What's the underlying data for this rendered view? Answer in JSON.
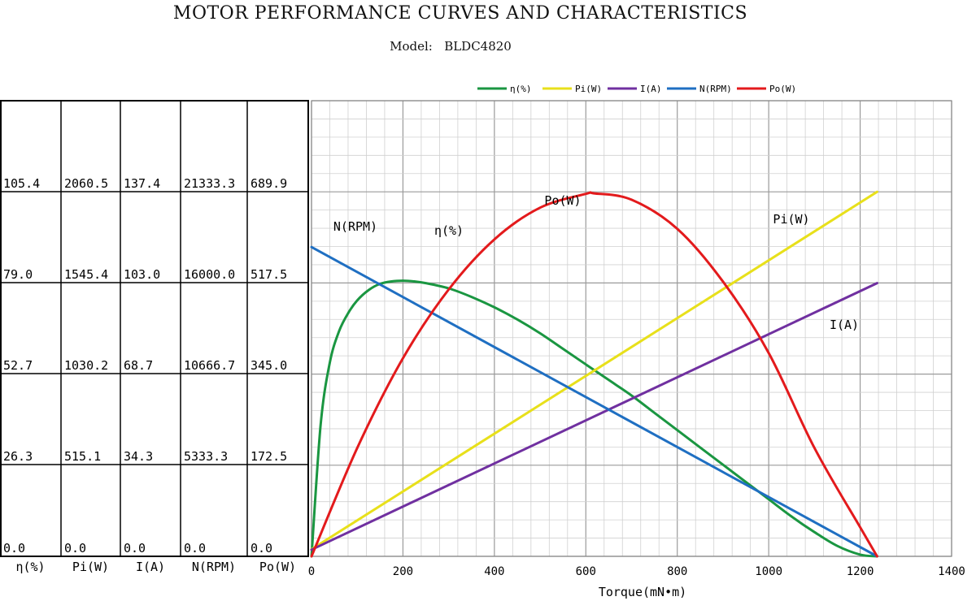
{
  "header": {
    "title": "MOTOR PERFORMANCE CURVES AND CHARACTERISTICS",
    "model_label": "Model:",
    "model_value": "BLDC4820"
  },
  "table": {
    "columns": [
      "η(%)",
      "Pi(W)",
      "I(A)",
      "N(RPM)",
      "Po(W)"
    ],
    "rows": [
      [
        "105.4",
        "2060.5",
        "137.4",
        "21333.3",
        "689.9"
      ],
      [
        "79.0",
        "1545.4",
        "103.0",
        "16000.0",
        "517.5"
      ],
      [
        "52.7",
        "1030.2",
        "68.7",
        "10666.7",
        "345.0"
      ],
      [
        "26.3",
        "515.1",
        "34.3",
        "5333.3",
        "172.5"
      ],
      [
        "0.0",
        "0.0",
        "0.0",
        "0.0",
        "0.0"
      ]
    ]
  },
  "chart_data": {
    "type": "line",
    "title": "MOTOR PERFORMANCE CURVES AND CHARACTERISTICS",
    "subtitle": "Model:   BLDC4820",
    "xlabel": "Torque(mN•m)",
    "xlim": [
      0,
      1400
    ],
    "x_ticks": [
      0,
      200,
      400,
      600,
      800,
      1000,
      1200,
      1400
    ],
    "grid": true,
    "legend_position": "top",
    "series": [
      {
        "name": "η(%)",
        "color": "#1a9641",
        "axis_max": 131.75,
        "x": [
          0,
          20,
          40,
          60,
          80,
          100,
          125,
          150,
          175,
          200,
          225,
          250,
          300,
          350,
          400,
          450,
          500,
          550,
          600,
          650,
          700,
          750,
          800,
          850,
          900,
          950,
          1000,
          1050,
          1100,
          1150,
          1200,
          1237
        ],
        "values": [
          0,
          38,
          56,
          65,
          70.3,
          74,
          77,
          78.8,
          79.5,
          79.7,
          79.5,
          79,
          77.5,
          75,
          72,
          68.5,
          64.5,
          60,
          55.5,
          51,
          46.5,
          41.5,
          36.5,
          31.5,
          26.5,
          21.5,
          16.5,
          11.5,
          7,
          3,
          0.5,
          0
        ]
      },
      {
        "name": "Pi(W)",
        "color": "#e8e01b",
        "axis_max": 2575.6,
        "x": [
          0,
          1237
        ],
        "values": [
          40,
          2060.5
        ]
      },
      {
        "name": "I(A)",
        "color": "#7030a0",
        "axis_max": 171.75,
        "x": [
          0,
          1237
        ],
        "values": [
          2.5,
          103
        ]
      },
      {
        "name": "N(RPM)",
        "color": "#1f6fc2",
        "axis_max": 26666.6,
        "x": [
          0,
          1237
        ],
        "values": [
          18100,
          0
        ]
      },
      {
        "name": "Po(W)",
        "color": "#e31a1c",
        "axis_max": 862.4,
        "x": [
          0,
          100,
          200,
          300,
          400,
          500,
          600,
          618,
          700,
          800,
          900,
          1000,
          1100,
          1200,
          1237
        ],
        "values": [
          0,
          205,
          375,
          505,
          600,
          660,
          686,
          687,
          675,
          620,
          520,
          385,
          205,
          55,
          0
        ]
      }
    ],
    "annotations": [
      {
        "text": "Po(W)",
        "series": "Po(W)"
      },
      {
        "text": "N(RPM)",
        "series": "N(RPM)"
      },
      {
        "text": "η(%)",
        "series": "η(%)"
      },
      {
        "text": "Pi(W)",
        "series": "Pi(W)"
      },
      {
        "text": "I(A)",
        "series": "I(A)"
      }
    ]
  }
}
